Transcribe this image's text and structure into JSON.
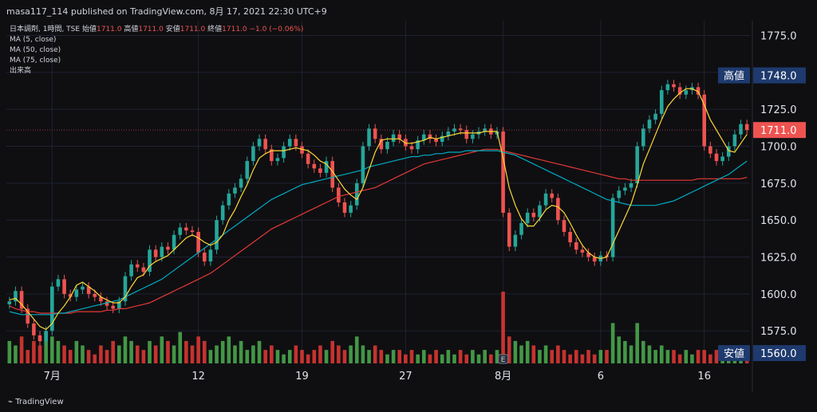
{
  "header": {
    "publisher_line": "masa117_114 published on TradingView.com, 8月 17, 2021 22:30 UTC+9"
  },
  "legend": {
    "symbol": "日本調剤, 1時間, TSE",
    "ohlc": [
      {
        "label": "始値",
        "value": "1711.0"
      },
      {
        "label": "高値",
        "value": "1711.0"
      },
      {
        "label": "安値",
        "value": "1711.0"
      },
      {
        "label": "終値",
        "value": "1711.0"
      }
    ],
    "change": "−1.0 (−0.06%)",
    "indicators": [
      "MA (5, close)",
      "MA (50, close)",
      "MA (75, close)",
      "出来高"
    ]
  },
  "footer": {
    "logo_text": "TradingView"
  },
  "colors": {
    "up": "#26a69a",
    "down": "#ef5350",
    "vol_up": "#4caf50",
    "vol_down": "#e53935",
    "ma5": "#fdd835",
    "ma50": "#00acc1",
    "ma75": "#e53935",
    "badge_bg": "#1e3a6e"
  },
  "chart_data": {
    "type": "candlestick",
    "y_ticks": [
      1775,
      1750,
      1725,
      1700,
      1675,
      1650,
      1625,
      1600,
      1575
    ],
    "y_tick_labels": [
      "1775.0",
      "1750.0",
      "1725.0",
      "1700.0",
      "1675.0",
      "1650.0",
      "1625.0",
      "1600.0",
      "1575.0"
    ],
    "ylim": [
      1553,
      1785
    ],
    "x_labels": [
      "7月",
      "12",
      "19",
      "27",
      "8月",
      "6",
      "16"
    ],
    "x_label_bars": [
      7,
      31,
      48,
      65,
      81,
      97,
      114
    ],
    "bar_count": 122,
    "closes": [
      1595,
      1602,
      1590,
      1580,
      1572,
      1568,
      1575,
      1605,
      1610,
      1600,
      1598,
      1603,
      1605,
      1600,
      1598,
      1595,
      1592,
      1590,
      1595,
      1612,
      1620,
      1618,
      1615,
      1630,
      1625,
      1632,
      1630,
      1640,
      1645,
      1643,
      1642,
      1628,
      1622,
      1630,
      1650,
      1660,
      1668,
      1672,
      1678,
      1690,
      1700,
      1705,
      1698,
      1690,
      1692,
      1700,
      1705,
      1700,
      1695,
      1688,
      1685,
      1682,
      1690,
      1672,
      1662,
      1655,
      1660,
      1675,
      1700,
      1712,
      1705,
      1698,
      1703,
      1708,
      1705,
      1700,
      1698,
      1704,
      1708,
      1705,
      1703,
      1707,
      1710,
      1712,
      1711,
      1705,
      1708,
      1710,
      1712,
      1708,
      1710,
      1655,
      1632,
      1640,
      1648,
      1655,
      1652,
      1660,
      1668,
      1665,
      1650,
      1642,
      1635,
      1630,
      1628,
      1625,
      1622,
      1626,
      1625,
      1665,
      1670,
      1672,
      1675,
      1700,
      1712,
      1718,
      1722,
      1738,
      1742,
      1740,
      1735,
      1738,
      1740,
      1735,
      1700,
      1695,
      1690,
      1693,
      1700,
      1708,
      1715,
      1711
    ],
    "ma5": [
      1596,
      1597,
      1593,
      1588,
      1583,
      1578,
      1576,
      1580,
      1587,
      1592,
      1598,
      1606,
      1608,
      1605,
      1602,
      1598,
      1596,
      1594,
      1594,
      1598,
      1605,
      1611,
      1613,
      1619,
      1622,
      1624,
      1626,
      1630,
      1634,
      1638,
      1640,
      1638,
      1635,
      1633,
      1635,
      1640,
      1650,
      1657,
      1666,
      1674,
      1684,
      1692,
      1695,
      1697,
      1697,
      1697,
      1698,
      1699,
      1698,
      1697,
      1694,
      1690,
      1688,
      1683,
      1677,
      1671,
      1667,
      1664,
      1672,
      1684,
      1696,
      1704,
      1705,
      1705,
      1705,
      1702,
      1702,
      1703,
      1704,
      1706,
      1705,
      1706,
      1707,
      1708,
      1709,
      1709,
      1709,
      1709,
      1710,
      1710,
      1710,
      1692,
      1672,
      1660,
      1651,
      1646,
      1646,
      1651,
      1657,
      1660,
      1659,
      1655,
      1648,
      1640,
      1633,
      1628,
      1625,
      1624,
      1625,
      1634,
      1643,
      1652,
      1661,
      1674,
      1688,
      1698,
      1708,
      1718,
      1727,
      1732,
      1736,
      1739,
      1739,
      1737,
      1728,
      1718,
      1711,
      1704,
      1697,
      1696,
      1702,
      1708
    ],
    "ma50": [
      1588,
      1587,
      1586,
      1586,
      1586,
      1586,
      1586,
      1586,
      1587,
      1587,
      1588,
      1589,
      1590,
      1591,
      1592,
      1593,
      1594,
      1595,
      1596,
      1598,
      1600,
      1602,
      1604,
      1606,
      1608,
      1610,
      1613,
      1616,
      1619,
      1622,
      1625,
      1628,
      1631,
      1634,
      1637,
      1640,
      1643,
      1646,
      1649,
      1652,
      1655,
      1658,
      1661,
      1664,
      1666,
      1668,
      1670,
      1672,
      1674,
      1675,
      1676,
      1677,
      1678,
      1679,
      1680,
      1681,
      1682,
      1683,
      1684,
      1686,
      1687,
      1688,
      1689,
      1690,
      1691,
      1692,
      1693,
      1693,
      1694,
      1694,
      1695,
      1695,
      1696,
      1696,
      1696,
      1697,
      1697,
      1697,
      1697,
      1697,
      1697,
      1696,
      1695,
      1694,
      1692,
      1690,
      1688,
      1686,
      1684,
      1682,
      1680,
      1678,
      1676,
      1674,
      1672,
      1670,
      1668,
      1666,
      1664,
      1663,
      1662,
      1661,
      1660,
      1660,
      1660,
      1660,
      1660,
      1661,
      1662,
      1663,
      1665,
      1667,
      1669,
      1671,
      1673,
      1675,
      1677,
      1679,
      1681,
      1684,
      1687,
      1690
    ],
    "ma75": [
      1592,
      1590,
      1589,
      1588,
      1588,
      1587,
      1587,
      1587,
      1587,
      1587,
      1587,
      1588,
      1588,
      1588,
      1588,
      1588,
      1589,
      1589,
      1590,
      1590,
      1591,
      1592,
      1593,
      1594,
      1596,
      1598,
      1600,
      1602,
      1604,
      1606,
      1608,
      1610,
      1612,
      1614,
      1617,
      1620,
      1623,
      1626,
      1629,
      1632,
      1635,
      1638,
      1641,
      1644,
      1646,
      1648,
      1650,
      1652,
      1654,
      1656,
      1658,
      1660,
      1662,
      1664,
      1666,
      1667,
      1668,
      1669,
      1670,
      1671,
      1672,
      1674,
      1676,
      1678,
      1680,
      1682,
      1684,
      1686,
      1688,
      1689,
      1690,
      1691,
      1692,
      1693,
      1694,
      1695,
      1696,
      1697,
      1698,
      1698,
      1698,
      1697,
      1696,
      1695,
      1694,
      1693,
      1692,
      1691,
      1690,
      1689,
      1688,
      1687,
      1686,
      1685,
      1684,
      1683,
      1682,
      1681,
      1680,
      1679,
      1678,
      1678,
      1677,
      1677,
      1677,
      1677,
      1677,
      1677,
      1677,
      1677,
      1677,
      1677,
      1677,
      1678,
      1678,
      1678,
      1678,
      1678,
      1678,
      1678,
      1678,
      1679
    ],
    "volumes": [
      0.5,
      0.4,
      0.6,
      0.3,
      0.5,
      0.4,
      0.7,
      0.6,
      0.5,
      0.4,
      0.3,
      0.5,
      0.4,
      0.3,
      0.2,
      0.4,
      0.3,
      0.5,
      0.4,
      0.6,
      0.5,
      0.4,
      0.3,
      0.5,
      0.4,
      0.6,
      0.5,
      0.4,
      0.7,
      0.5,
      0.4,
      0.6,
      0.5,
      0.3,
      0.4,
      0.5,
      0.6,
      0.4,
      0.5,
      0.3,
      0.4,
      0.5,
      0.3,
      0.4,
      0.3,
      0.2,
      0.3,
      0.4,
      0.3,
      0.2,
      0.3,
      0.4,
      0.3,
      0.5,
      0.4,
      0.3,
      0.4,
      0.6,
      0.4,
      0.3,
      0.4,
      0.3,
      0.2,
      0.3,
      0.3,
      0.2,
      0.3,
      0.2,
      0.3,
      0.2,
      0.3,
      0.2,
      0.3,
      0.2,
      0.3,
      0.2,
      0.3,
      0.2,
      0.3,
      0.2,
      0.3,
      1.6,
      0.6,
      0.5,
      0.4,
      0.5,
      0.4,
      0.3,
      0.4,
      0.3,
      0.4,
      0.3,
      0.2,
      0.3,
      0.2,
      0.3,
      0.2,
      0.3,
      0.3,
      0.9,
      0.6,
      0.5,
      0.4,
      0.9,
      0.5,
      0.4,
      0.3,
      0.4,
      0.3,
      0.3,
      0.2,
      0.3,
      0.2,
      0.3,
      0.3,
      0.2,
      0.3,
      0.2,
      0.2,
      0.2,
      0.3,
      0.2
    ],
    "last_price": "1711.0",
    "high_label": "高値",
    "high_value": "1748.0",
    "low_label": "安値",
    "low_value": "1560.0",
    "event_marker": "E"
  }
}
